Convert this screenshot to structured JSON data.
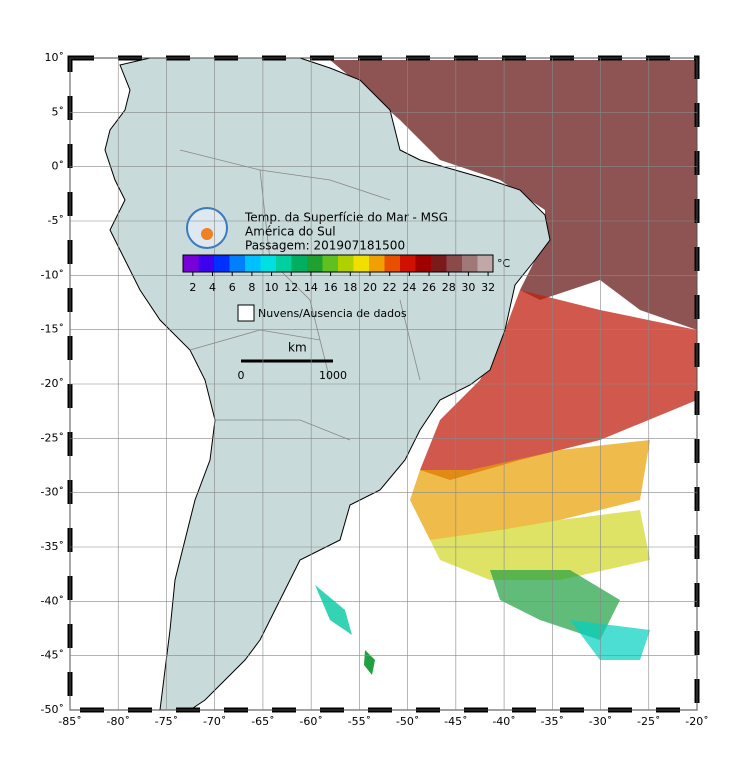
{
  "map": {
    "title": "Temp. da Superfície do Mar - MSG",
    "region": "América do Sul",
    "pass": "Passagem: 201907181500",
    "lonlim": [
      -85,
      -20
    ],
    "latlim": [
      -50,
      10
    ],
    "lon_ticks": [
      {
        "value": -85,
        "label": "-85˚"
      },
      {
        "value": -80,
        "label": "-80˚"
      },
      {
        "value": -75,
        "label": "-75˚"
      },
      {
        "value": -70,
        "label": "-70˚"
      },
      {
        "value": -65,
        "label": "-65˚"
      },
      {
        "value": -60,
        "label": "-60˚"
      },
      {
        "value": -55,
        "label": "-55˚"
      },
      {
        "value": -50,
        "label": "-50˚"
      },
      {
        "value": -45,
        "label": "-45˚"
      },
      {
        "value": -40,
        "label": "-40˚"
      },
      {
        "value": -35,
        "label": "-35˚"
      },
      {
        "value": -30,
        "label": "-30˚"
      },
      {
        "value": -25,
        "label": "-25˚"
      },
      {
        "value": -20,
        "label": "-20˚"
      }
    ],
    "lat_ticks": [
      {
        "value": 10,
        "label": "10˚"
      },
      {
        "value": 5,
        "label": "5˚"
      },
      {
        "value": 0,
        "label": "0˚"
      },
      {
        "value": -5,
        "label": "-5˚"
      },
      {
        "value": -10,
        "label": "-10˚"
      },
      {
        "value": -15,
        "label": "-15˚"
      },
      {
        "value": -20,
        "label": "-20˚"
      },
      {
        "value": -25,
        "label": "-25˚"
      },
      {
        "value": -30,
        "label": "-30˚"
      },
      {
        "value": -35,
        "label": "-35˚"
      },
      {
        "value": -40,
        "label": "-40˚"
      },
      {
        "value": -45,
        "label": "-45˚"
      },
      {
        "value": -50,
        "label": "-50˚"
      }
    ],
    "colorbar": {
      "range": [
        1,
        32.5
      ],
      "ticks": [
        2,
        4,
        6,
        8,
        10,
        12,
        14,
        16,
        18,
        20,
        22,
        24,
        26,
        28,
        30,
        32
      ],
      "unit": "°C",
      "colors": [
        "#7a00d8",
        "#4000f0",
        "#0030ff",
        "#0080ff",
        "#00c0ff",
        "#00e0e0",
        "#00d0a0",
        "#00b060",
        "#20a030",
        "#60c020",
        "#b0d000",
        "#f0e000",
        "#f0a000",
        "#e85000",
        "#d01000",
        "#a00000",
        "#7a1a1a",
        "#8a4a4a",
        "#a07878",
        "#c0a8a8"
      ]
    },
    "legend": "Nuvens/Ausencia de dados",
    "scale": {
      "unit": "km",
      "start": "0",
      "end": "1000"
    }
  }
}
